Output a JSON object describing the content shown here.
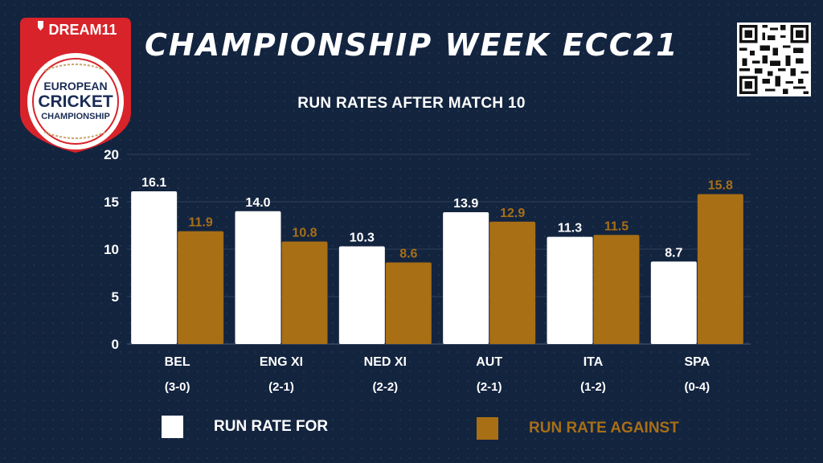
{
  "header": {
    "title": "CHAMPIONSHIP WEEK ECC21",
    "logo": {
      "brand": "DREAM11",
      "line1": "EUROPEAN",
      "line2": "CRICKET",
      "line3": "CHAMPIONSHIP"
    },
    "qr_icon": "qr-code-icon"
  },
  "colors": {
    "background": "#13243f",
    "series_for": "#ffffff",
    "series_against": "#a86f15",
    "logo_red": "#d8232a"
  },
  "chart_data": {
    "type": "bar",
    "title": "RUN RATES AFTER MATCH 10",
    "categories": [
      "BEL",
      "ENG XI",
      "NED XI",
      "AUT",
      "ITA",
      "SPA"
    ],
    "category_records": [
      "(3-0)",
      "(2-1)",
      "(2-2)",
      "(2-1)",
      "(1-2)",
      "(0-4)"
    ],
    "series": [
      {
        "name": "RUN RATE FOR",
        "values": [
          16.1,
          14.0,
          10.3,
          13.9,
          11.3,
          8.7
        ],
        "labels": [
          "16.1",
          "14.0",
          "10.3",
          "13.9",
          "11.3",
          "8.7"
        ]
      },
      {
        "name": "RUN RATE AGAINST",
        "values": [
          11.9,
          10.8,
          8.6,
          12.9,
          11.5,
          15.8
        ],
        "labels": [
          "11.9",
          "10.8",
          "8.6",
          "12.9",
          "11.5",
          "15.8"
        ]
      }
    ],
    "ylim": [
      0,
      20
    ],
    "yticks": [
      0,
      5,
      10,
      15,
      20
    ],
    "grid": true,
    "legend_position": "bottom"
  }
}
